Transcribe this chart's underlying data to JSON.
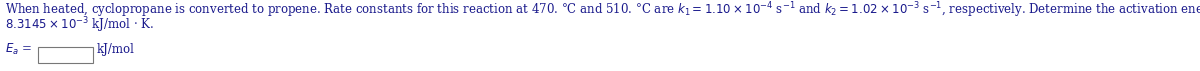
{
  "line1": "When heated, cyclopropane is converted to propene. Rate constants for this reaction at 470. °C and 510. °C are $k_1 = 1.10 \\times 10^{-4}$ s$^{-1}$ and $k_2 = 1.02 \\times 10^{-3}$ s$^{-1}$, respectively. Determine the activation energy, $E_a$, from these data. The gas constant $R$ is",
  "line2": "$8.3145 \\times 10^{-3}$ kJ/mol · K.",
  "ea_label": "$E_a$ =",
  "kj_mol": "kJ/mol",
  "text_color": "#1a1a8c",
  "bg_color": "#ffffff",
  "font_size": 8.5,
  "fig_width": 12.0,
  "fig_height": 0.71,
  "dpi": 100
}
